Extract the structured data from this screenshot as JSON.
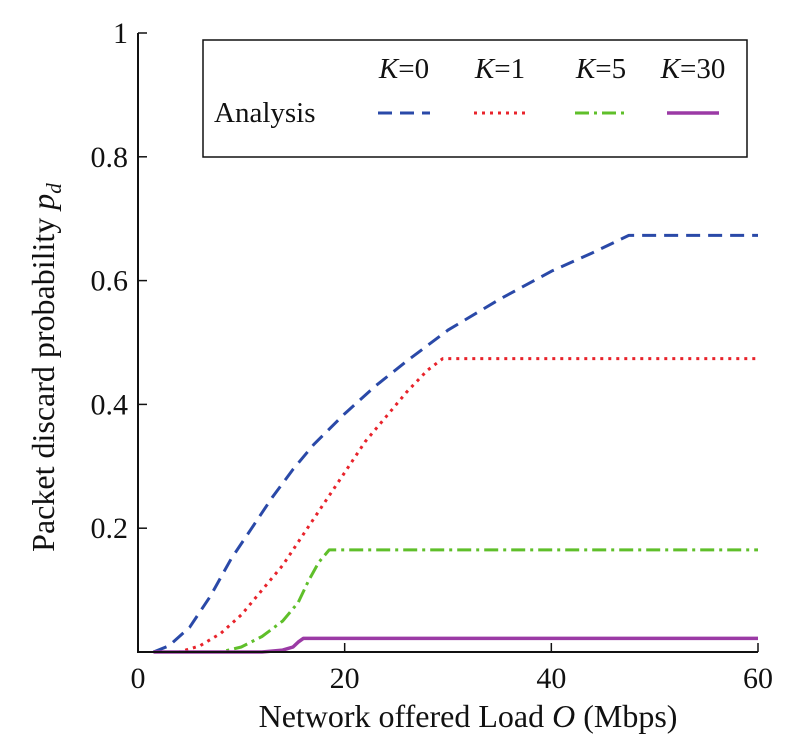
{
  "chart_data": {
    "type": "line",
    "xlabel": {
      "prefix": "Network offered Load ",
      "var": "O",
      "suffix": " (Mbps)"
    },
    "ylabel": {
      "prefix": "Packet discard probability ",
      "var": "p",
      "sub": "d"
    },
    "xlim": [
      0,
      60
    ],
    "ylim": [
      0,
      1
    ],
    "xticks": [
      0,
      20,
      40,
      60
    ],
    "xtick_labels": [
      "0",
      "20",
      "40",
      "60"
    ],
    "yticks": [
      0.2,
      0.4,
      0.6,
      0.8,
      1.0
    ],
    "ytick_labels": [
      "0.2",
      "0.4",
      "0.6",
      "0.8",
      "1"
    ],
    "grid": false,
    "legend": {
      "position": "top-right",
      "row_label": "Analysis",
      "header_var": "K"
    },
    "series": [
      {
        "name": "K=0",
        "k_value": "=0",
        "color": "#2a49a8",
        "style": "dashed",
        "x": [
          1.5,
          3,
          5,
          7,
          9,
          11,
          13,
          15,
          17,
          20,
          23,
          26,
          30,
          35,
          40,
          44,
          47.5,
          60
        ],
        "y": [
          0.0,
          0.01,
          0.04,
          0.09,
          0.15,
          0.2,
          0.25,
          0.295,
          0.335,
          0.385,
          0.43,
          0.47,
          0.52,
          0.57,
          0.615,
          0.645,
          0.673,
          0.673
        ]
      },
      {
        "name": "K=1",
        "k_value": "=1",
        "color": "#e8232b",
        "style": "dotted",
        "x": [
          1.5,
          4,
          6,
          8,
          10,
          12,
          14,
          16,
          18,
          20,
          22,
          24,
          26,
          28,
          29.5,
          60
        ],
        "y": [
          0.0,
          0.0,
          0.01,
          0.03,
          0.06,
          0.1,
          0.14,
          0.19,
          0.24,
          0.29,
          0.34,
          0.38,
          0.42,
          0.455,
          0.474,
          0.474
        ]
      },
      {
        "name": "K=5",
        "k_value": "=5",
        "color": "#5fbf2a",
        "style": "dashdot",
        "x": [
          1.5,
          8,
          10,
          12,
          14,
          15.5,
          16.5,
          17.5,
          18.5,
          60
        ],
        "y": [
          0.0,
          0.0,
          0.008,
          0.025,
          0.05,
          0.08,
          0.115,
          0.145,
          0.165,
          0.165
        ]
      },
      {
        "name": "K=30",
        "k_value": "=30",
        "color": "#9b3aa5",
        "style": "solid",
        "x": [
          1.5,
          12,
          14,
          15,
          15.5,
          16,
          60
        ],
        "y": [
          0.0,
          0.0,
          0.003,
          0.008,
          0.016,
          0.022,
          0.022
        ]
      }
    ]
  }
}
